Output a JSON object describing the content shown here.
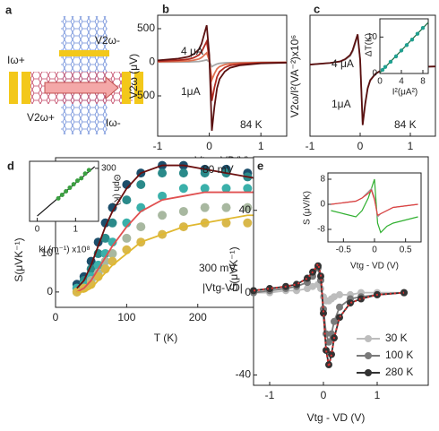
{
  "diagram": {
    "panel": "a",
    "labels": [
      "Iω+",
      "V2ω-",
      "V2ω+",
      "Iω-"
    ]
  },
  "chart_data": [
    {
      "type": "line",
      "panel": "b",
      "xlabel": "Vtg - VD(V)",
      "ylabel": "V2ω (μV)",
      "x": [
        -1,
        -0.6,
        -0.4,
        -0.3,
        -0.2,
        -0.15,
        -0.1,
        -0.05,
        0,
        0.05,
        0.1,
        0.15,
        0.2,
        0.3,
        0.4,
        0.6,
        1,
        1.5
      ],
      "xlim": [
        -1,
        1.5
      ],
      "xticks": [
        -1,
        0,
        1
      ],
      "ylim": [
        -1100,
        700
      ],
      "yticks": [
        -500,
        0,
        500
      ],
      "series": [
        {
          "color": "#a8a8a8",
          "mode": "line",
          "values": [
            2,
            4,
            5,
            8,
            12,
            18,
            26,
            35,
            7,
            -65,
            -42,
            -25,
            -16,
            -9,
            -5,
            -3,
            -1,
            0
          ]
        },
        {
          "color": "#e07050",
          "mode": "line",
          "values": [
            7,
            14,
            21,
            31,
            49,
            70,
            105,
            140,
            28,
            -259,
            -168,
            -98,
            -63,
            -35,
            -21,
            -11,
            -4,
            -1
          ]
        },
        {
          "color": "#b02a20",
          "mode": "line",
          "values": [
            16,
            31,
            47,
            68,
            109,
            155,
            233,
            310,
            62,
            -574,
            -372,
            -217,
            -140,
            -78,
            -47,
            -25,
            -9,
            -3
          ]
        },
        {
          "color": "#5a1010",
          "mode": "line",
          "values": [
            28,
            55,
            83,
            121,
            193,
            275,
            413,
            550,
            110,
            -1018,
            -660,
            -385,
            -248,
            -138,
            -83,
            -44,
            -17,
            -6
          ]
        }
      ],
      "annotations": [
        {
          "text": "4 μA",
          "color": "#7a1010"
        },
        {
          "text": "1μA",
          "color": "#999999"
        },
        {
          "text": "84 K",
          "color": "#222222"
        }
      ]
    },
    {
      "type": "line",
      "panel": "c",
      "xlabel": "Vtg - VD(V)",
      "ylabel": "V2ω/I²(VA⁻²)x10⁶",
      "x": [
        -1,
        -0.6,
        -0.4,
        -0.3,
        -0.2,
        -0.15,
        -0.1,
        -0.05,
        0,
        0.05,
        0.1,
        0.15,
        0.2,
        0.3,
        0.4,
        0.6,
        1,
        1.5
      ],
      "xlim": [
        -1,
        1.5
      ],
      "xticks": [
        -1,
        0,
        1
      ],
      "ylim": [
        -2.2,
        1.6
      ],
      "series": [
        {
          "color": "#a8a8a8",
          "mode": "line",
          "values": [
            0.05,
            0.1,
            0.14,
            0.2,
            0.32,
            0.46,
            0.7,
            0.95,
            0.2,
            -1.75,
            -1.15,
            -0.68,
            -0.43,
            -0.24,
            -0.14,
            -0.07,
            -0.03,
            -0.01
          ]
        },
        {
          "color": "#5a1010",
          "mode": "line",
          "values": [
            0.05,
            0.1,
            0.15,
            0.22,
            0.35,
            0.5,
            0.75,
            1,
            0.2,
            -1.85,
            -1.2,
            -0.7,
            -0.45,
            -0.25,
            -0.15,
            -0.08,
            -0.03,
            -0.01
          ]
        }
      ],
      "annotations": [
        {
          "text": "4 μA",
          "color": "#7a1010"
        },
        {
          "text": "1μA",
          "color": "#999999"
        },
        {
          "text": "84 K",
          "color": "#222222"
        }
      ]
    },
    {
      "type": "scatter",
      "xlabel": "I²(μA²)",
      "ylabel": "ΔT(K)",
      "xlim": [
        0,
        9
      ],
      "xticks": [
        0,
        4,
        8
      ],
      "ylim": [
        0,
        15
      ],
      "yticks": [
        0,
        10
      ],
      "series": [
        {
          "color": "#1a6a40",
          "mode": "line",
          "x": [
            0,
            9
          ],
          "values": [
            0.2,
            14
          ]
        },
        {
          "color": "#20a090",
          "mode": "markers",
          "x": [
            0.5,
            1,
            2,
            3,
            4,
            5,
            6,
            7,
            8
          ],
          "values": [
            1,
            1.8,
            3.2,
            4.7,
            6.3,
            7.8,
            9.3,
            10.9,
            12.5
          ]
        }
      ]
    },
    {
      "type": "scatter",
      "panel": "d",
      "xlabel": "T (K)",
      "ylabel": "S(μVK⁻¹)",
      "x": [
        30,
        40,
        50,
        60,
        70,
        80,
        100,
        120,
        150,
        180,
        210,
        240,
        270,
        300
      ],
      "xlim": [
        0,
        320
      ],
      "xticks": [
        0,
        100,
        200,
        300
      ],
      "ylim": [
        -4,
        35
      ],
      "yticks": [
        0,
        10,
        20,
        30
      ],
      "series": [
        {
          "color": "#1c4e6b",
          "mode": "markers",
          "values": [
            2,
            4,
            8,
            13,
            18,
            22,
            28,
            31,
            33,
            33,
            32,
            32,
            31,
            31
          ]
        },
        {
          "color": "#2a8a8a",
          "mode": "markers",
          "values": [
            1,
            3,
            6,
            10,
            14,
            18,
            24,
            28,
            31,
            31,
            31,
            31,
            30,
            29
          ]
        },
        {
          "color": "#3ab0aa",
          "mode": "markers",
          "values": [
            1,
            2,
            4,
            7,
            10,
            13,
            18,
            22,
            25,
            27,
            27,
            27,
            27,
            27
          ]
        },
        {
          "color": "#a8b8a0",
          "mode": "markers",
          "values": [
            0,
            1,
            3,
            5,
            8,
            10,
            14,
            17,
            20,
            21,
            22,
            22,
            22,
            22
          ]
        },
        {
          "color": "#d9b84a",
          "mode": "markers",
          "values": [
            0,
            1,
            2,
            4,
            6,
            8,
            11,
            13,
            15,
            17,
            18,
            18,
            18,
            19
          ]
        },
        {
          "color": "#6b0f0f",
          "mode": "line",
          "values": [
            1,
            3,
            7,
            12,
            17,
            21,
            27,
            31,
            33,
            33,
            32,
            31,
            30,
            29
          ]
        },
        {
          "color": "#e05050",
          "mode": "line",
          "values": [
            0,
            1,
            3,
            6,
            9,
            12,
            17,
            21,
            24,
            25,
            26,
            26,
            26,
            26
          ]
        },
        {
          "color": "#e0b830",
          "mode": "line",
          "values": [
            0,
            0,
            1,
            3,
            5,
            7,
            10,
            13,
            15,
            17,
            18,
            19,
            20,
            20
          ]
        }
      ],
      "annotations": [
        {
          "text": "80 mV",
          "color": "#1c6a7a"
        },
        {
          "text": "300 mV",
          "color": "#c9a030"
        },
        {
          "text": "|Vtg-VD|",
          "color": "#555555"
        }
      ]
    },
    {
      "type": "scatter",
      "xlabel": "kL(m⁻¹) x10⁸",
      "ylabel": "Θph (K)",
      "ytick_side": "right",
      "xlim": [
        -0.2,
        1.6
      ],
      "xticks": [
        0,
        1
      ],
      "ylim": [
        150,
        320
      ],
      "yticks": [
        300
      ],
      "series": [
        {
          "color": "#111111",
          "mode": "line",
          "x": [
            0,
            1.5
          ],
          "values": [
            165,
            305
          ]
        },
        {
          "color": "#3aa040",
          "mode": "markers",
          "x": [
            0.55,
            0.65,
            0.75,
            0.85,
            0.95,
            1.05,
            1.15,
            1.25,
            1.35
          ],
          "values": [
            215,
            225,
            235,
            245,
            255,
            265,
            272,
            285,
            295
          ]
        }
      ]
    },
    {
      "type": "line",
      "panel": "e",
      "xlabel": "Vtg - VD (V)",
      "ylabel": "S(μVK⁻¹)",
      "x": [
        -1.3,
        -1,
        -0.7,
        -0.5,
        -0.3,
        -0.2,
        -0.1,
        -0.05,
        0,
        0.05,
        0.1,
        0.15,
        0.2,
        0.3,
        0.5,
        0.7,
        1,
        1.5
      ],
      "xlim": [
        -1.3,
        1.95
      ],
      "xticks": [
        -1,
        0,
        1
      ],
      "ylim": [
        -45,
        66
      ],
      "yticks": [
        -40,
        0,
        40
      ],
      "series": [
        {
          "name": "30 K",
          "color": "#bdbdbd",
          "mode": "line+markers",
          "values": [
            0,
            0,
            1,
            1,
            2,
            3,
            4,
            2,
            -2,
            -4,
            -4,
            -3,
            -2,
            -1,
            -1,
            0,
            0,
            0
          ]
        },
        {
          "name": "100 K",
          "color": "#7a7a7a",
          "mode": "line+markers",
          "values": [
            0,
            1,
            2,
            3,
            5,
            8,
            12,
            6,
            -8,
            -20,
            -24,
            -20,
            -14,
            -7,
            -3,
            -2,
            -1,
            0
          ]
        },
        {
          "name": "280 K",
          "color": "#333333",
          "mode": "line+markers",
          "values": [
            1,
            2,
            3,
            4,
            7,
            10,
            13,
            8,
            -10,
            -28,
            -35,
            -30,
            -22,
            -12,
            -5,
            -3,
            -1,
            0
          ]
        },
        {
          "color": "#e03030",
          "mode": "dotted",
          "values": [
            1,
            2,
            3,
            4,
            7,
            10,
            14,
            9,
            -9,
            -28,
            -36,
            -30,
            -22,
            -12,
            -5,
            -3,
            -1,
            0
          ]
        }
      ]
    },
    {
      "type": "line",
      "xlabel": "Vtg - VD (V)",
      "ylabel": "S (μV/K)",
      "x": [
        -0.7,
        -0.5,
        -0.3,
        -0.2,
        -0.1,
        -0.05,
        0,
        0.05,
        0.1,
        0.2,
        0.3,
        0.5,
        0.7
      ],
      "xlim": [
        -0.75,
        0.75
      ],
      "xticks": [
        -0.5,
        0,
        0.5
      ],
      "ylim": [
        -12,
        10
      ],
      "yticks": [
        -8,
        0,
        8
      ],
      "series": [
        {
          "color": "#30b030",
          "mode": "line",
          "values": [
            -2,
            -3,
            -4,
            -2,
            2,
            5,
            8,
            -6,
            -9,
            -7,
            -6,
            -5,
            -4
          ]
        },
        {
          "color": "#9a9a9a",
          "mode": "line",
          "values": [
            0,
            0.5,
            1,
            2,
            4,
            5,
            2,
            -4,
            -3,
            -2,
            -1,
            -0.5,
            0
          ]
        },
        {
          "color": "#e04040",
          "mode": "line",
          "values": [
            0,
            0.5,
            1,
            2,
            3.5,
            4.5,
            1.5,
            -3.5,
            -3,
            -2,
            -1,
            -0.5,
            0
          ]
        }
      ]
    }
  ]
}
